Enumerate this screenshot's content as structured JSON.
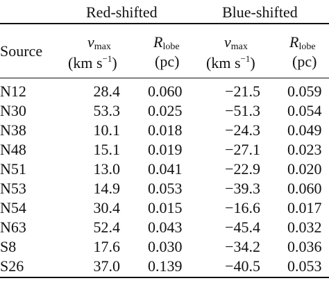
{
  "groups": {
    "red": "Red-shifted",
    "blue": "Blue-shifted"
  },
  "headers": {
    "source": "Source",
    "vmax_symbol": "v",
    "vmax_sub": "max",
    "vmax_unit_main": "(km s",
    "vmax_unit_exp": "−1",
    "vmax_unit_close": ")",
    "rlobe_symbol": "R",
    "rlobe_sub": "lobe",
    "rlobe_unit": "(pc)"
  },
  "rows": [
    {
      "source": "N12",
      "red_vmax": "28.4",
      "red_rlobe": "0.060",
      "blue_vmax": "−21.5",
      "blue_rlobe": "0.059"
    },
    {
      "source": "N30",
      "red_vmax": "53.3",
      "red_rlobe": "0.025",
      "blue_vmax": "−51.3",
      "blue_rlobe": "0.054"
    },
    {
      "source": "N38",
      "red_vmax": "10.1",
      "red_rlobe": "0.018",
      "blue_vmax": "−24.3",
      "blue_rlobe": "0.049"
    },
    {
      "source": "N48",
      "red_vmax": "15.1",
      "red_rlobe": "0.019",
      "blue_vmax": "−27.1",
      "blue_rlobe": "0.023"
    },
    {
      "source": "N51",
      "red_vmax": "13.0",
      "red_rlobe": "0.041",
      "blue_vmax": "−22.9",
      "blue_rlobe": "0.020"
    },
    {
      "source": "N53",
      "red_vmax": "14.9",
      "red_rlobe": "0.053",
      "blue_vmax": "−39.3",
      "blue_rlobe": "0.060"
    },
    {
      "source": "N54",
      "red_vmax": "30.4",
      "red_rlobe": "0.015",
      "blue_vmax": "−16.6",
      "blue_rlobe": "0.017"
    },
    {
      "source": "N63",
      "red_vmax": "52.4",
      "red_rlobe": "0.043",
      "blue_vmax": "−45.4",
      "blue_rlobe": "0.032"
    },
    {
      "source": "S8",
      "red_vmax": "17.6",
      "red_rlobe": "0.030",
      "blue_vmax": "−34.2",
      "blue_rlobe": "0.036"
    },
    {
      "source": "S26",
      "red_vmax": "37.0",
      "red_rlobe": "0.139",
      "blue_vmax": "−40.5",
      "blue_rlobe": "0.053"
    }
  ]
}
